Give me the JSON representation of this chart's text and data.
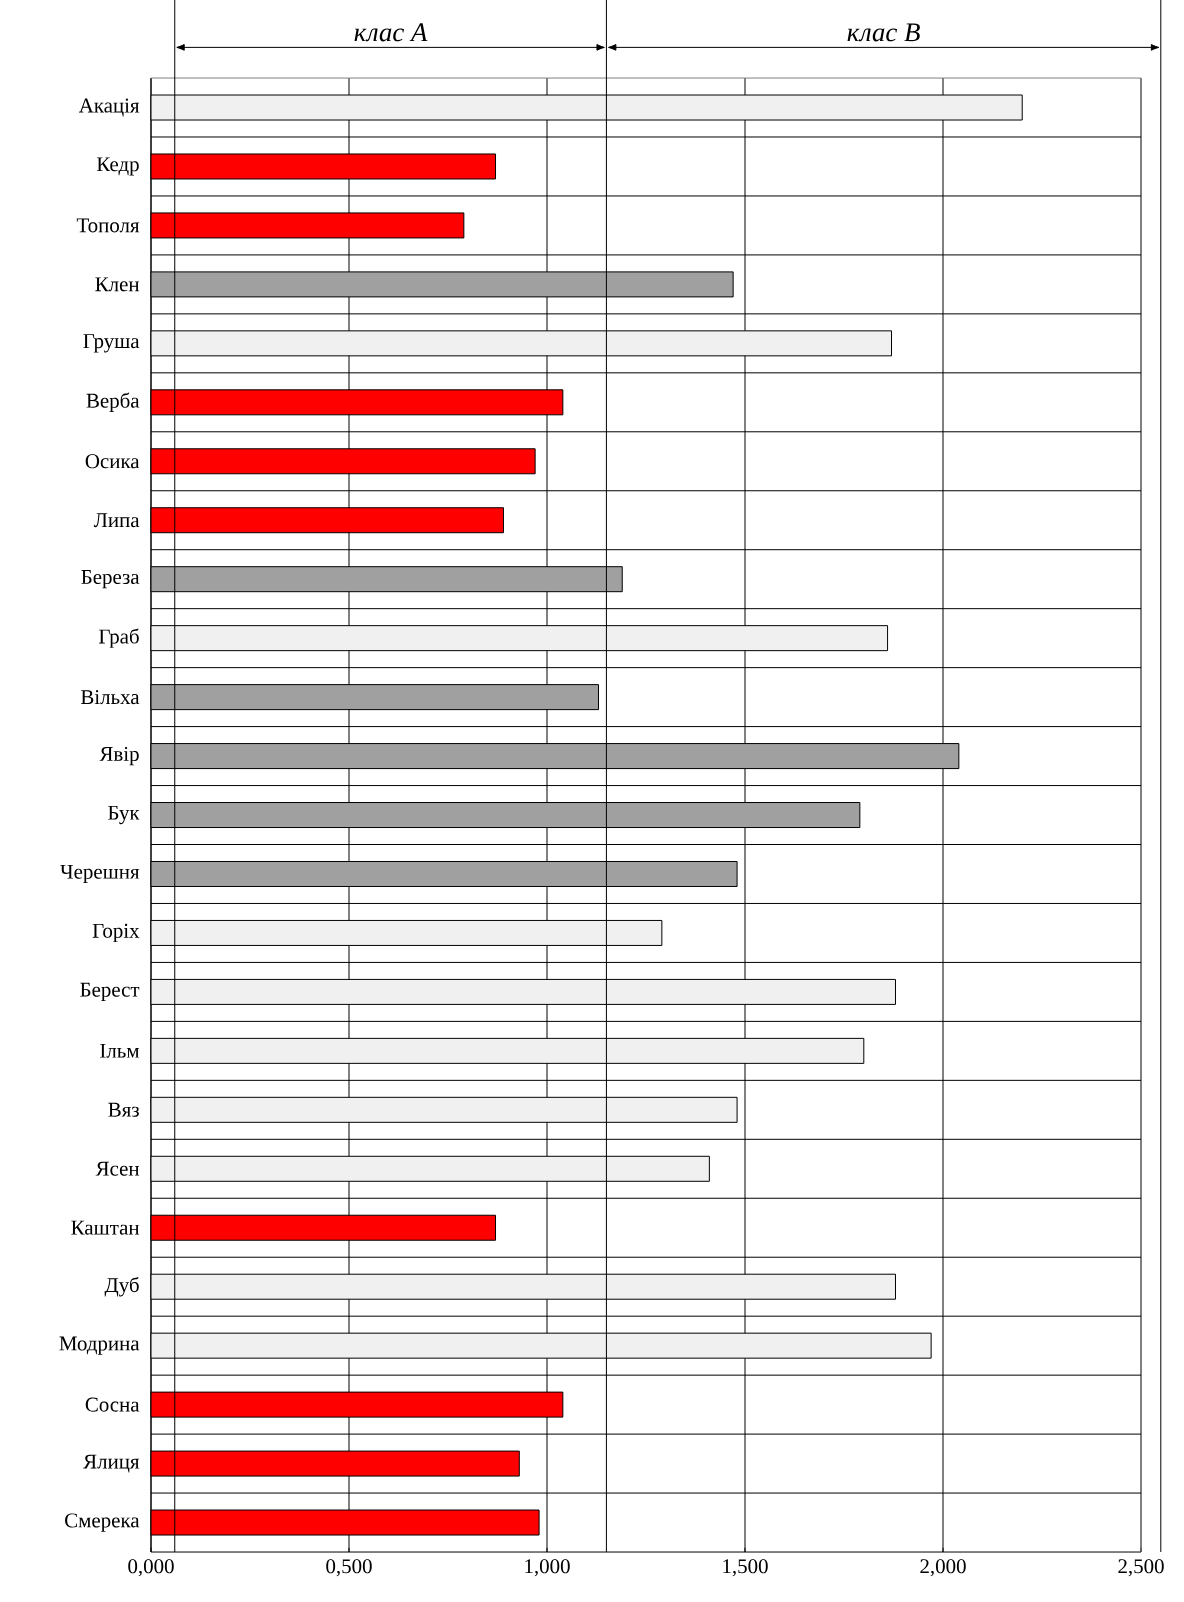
{
  "chart_data": {
    "type": "bar",
    "orientation": "horizontal",
    "categories": [
      "Акація",
      "Кедр",
      "Тополя",
      "Клен",
      "Груша",
      "Верба",
      "Осика",
      "Липа",
      "Береза",
      "Граб",
      "Вільха",
      "Явір",
      "Бук",
      "Черешня",
      "Горіх",
      "Берест",
      "Ільм",
      "Вяз",
      "Ясен",
      "Каштан",
      "Дуб",
      "Модрина",
      "Сосна",
      "Ялиця",
      "Смерека"
    ],
    "values": [
      2.2,
      0.87,
      0.79,
      1.47,
      1.87,
      1.04,
      0.97,
      0.89,
      1.19,
      1.86,
      1.13,
      2.04,
      1.79,
      1.48,
      1.29,
      1.88,
      1.8,
      1.48,
      1.41,
      0.87,
      1.88,
      1.97,
      1.04,
      0.93,
      0.98
    ],
    "colors": [
      "#f0f0f0",
      "#ff0000",
      "#ff0000",
      "#a0a0a0",
      "#f0f0f0",
      "#ff0000",
      "#ff0000",
      "#ff0000",
      "#a0a0a0",
      "#f0f0f0",
      "#a0a0a0",
      "#a0a0a0",
      "#a0a0a0",
      "#a0a0a0",
      "#f0f0f0",
      "#f0f0f0",
      "#f0f0f0",
      "#f0f0f0",
      "#f0f0f0",
      "#ff0000",
      "#f0f0f0",
      "#f0f0f0",
      "#ff0000",
      "#ff0000",
      "#ff0000"
    ],
    "xlim": [
      0,
      2.5
    ],
    "xticks": [
      {
        "value": 0,
        "label": "0,000"
      },
      {
        "value": 0.5,
        "label": "0,500"
      },
      {
        "value": 1,
        "label": "1,000"
      },
      {
        "value": 1.5,
        "label": "1,500"
      },
      {
        "value": 2,
        "label": "2,000"
      },
      {
        "value": 2.5,
        "label": "2,500"
      }
    ],
    "grid": true,
    "ref_lines": [
      {
        "axis": "x",
        "value": 0.06
      },
      {
        "axis": "x",
        "value": 1.15
      },
      {
        "axis": "x",
        "value": 2.55
      }
    ],
    "annotations": [
      "клас *A*",
      "клас *B*"
    ]
  }
}
